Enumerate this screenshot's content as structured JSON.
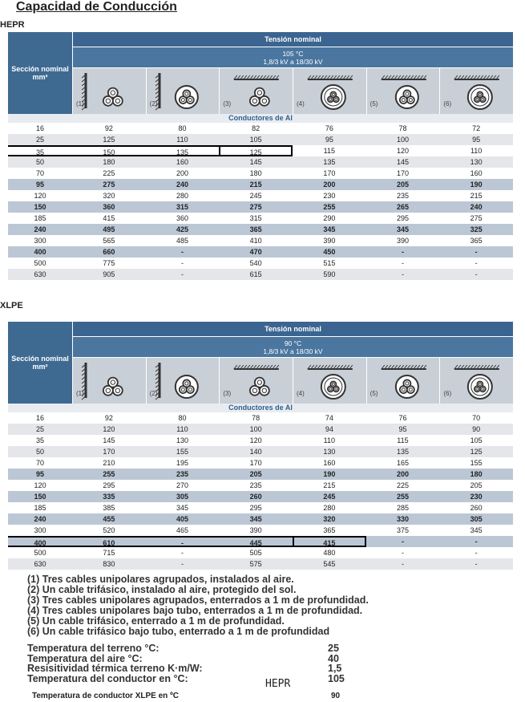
{
  "title": "Capacidad de Conducción",
  "tables": [
    {
      "label": "HEPR",
      "section_header": "Sección nominal",
      "unit": "mm²",
      "voltage_header": "Tensión nominal",
      "temperature": "105 °C",
      "voltage": "1,8/3 kV a 18/30 kV",
      "columns": [
        "(1)",
        "(2)",
        "(3)",
        "(4)",
        "(5)",
        "(6)"
      ],
      "subheader": "Conductores de Al",
      "rows": [
        [
          "16",
          "92",
          "80",
          "82",
          "76",
          "78",
          "72"
        ],
        [
          "25",
          "125",
          "110",
          "105",
          "95",
          "100",
          "95"
        ],
        [
          "35",
          "150",
          "135",
          "125",
          "115",
          "120",
          "110"
        ],
        [
          "50",
          "180",
          "160",
          "145",
          "135",
          "145",
          "130"
        ],
        [
          "70",
          "225",
          "200",
          "180",
          "170",
          "170",
          "160"
        ],
        [
          "95",
          "275",
          "240",
          "215",
          "200",
          "205",
          "190"
        ],
        [
          "120",
          "320",
          "280",
          "245",
          "230",
          "235",
          "215"
        ],
        [
          "150",
          "360",
          "315",
          "275",
          "255",
          "265",
          "240"
        ],
        [
          "185",
          "415",
          "360",
          "315",
          "290",
          "295",
          "275"
        ],
        [
          "240",
          "495",
          "425",
          "365",
          "345",
          "345",
          "325"
        ],
        [
          "300",
          "565",
          "485",
          "410",
          "390",
          "390",
          "365"
        ],
        [
          "400",
          "660",
          "-",
          "470",
          "450",
          "-",
          "-"
        ],
        [
          "500",
          "775",
          "-",
          "540",
          "515",
          "-",
          "-"
        ],
        [
          "630",
          "905",
          "-",
          "615",
          "590",
          "-",
          "-"
        ]
      ]
    },
    {
      "label": "XLPE",
      "section_header": "Sección nominal",
      "unit": "mm²",
      "voltage_header": "Tensión nominal",
      "temperature": "90 °C",
      "voltage": "1,8/3 kV a 18/30 kV",
      "columns": [
        "(1)",
        "(2)",
        "(3)",
        "(4)",
        "(5)",
        "(6)"
      ],
      "subheader": "Conductores de Al",
      "rows": [
        [
          "16",
          "92",
          "80",
          "78",
          "74",
          "76",
          "70"
        ],
        [
          "25",
          "120",
          "110",
          "100",
          "94",
          "95",
          "90"
        ],
        [
          "35",
          "145",
          "130",
          "120",
          "110",
          "115",
          "105"
        ],
        [
          "50",
          "170",
          "155",
          "140",
          "130",
          "135",
          "125"
        ],
        [
          "70",
          "210",
          "195",
          "170",
          "160",
          "165",
          "155"
        ],
        [
          "95",
          "255",
          "235",
          "205",
          "190",
          "200",
          "180"
        ],
        [
          "120",
          "295",
          "270",
          "235",
          "215",
          "225",
          "205"
        ],
        [
          "150",
          "335",
          "305",
          "260",
          "245",
          "255",
          "230"
        ],
        [
          "185",
          "385",
          "345",
          "295",
          "280",
          "285",
          "260"
        ],
        [
          "240",
          "455",
          "405",
          "345",
          "320",
          "330",
          "305"
        ],
        [
          "300",
          "520",
          "465",
          "390",
          "365",
          "375",
          "345"
        ],
        [
          "400",
          "610",
          "-",
          "445",
          "415",
          "-",
          "-"
        ],
        [
          "500",
          "715",
          "-",
          "505",
          "480",
          "-",
          "-"
        ],
        [
          "630",
          "830",
          "-",
          "575",
          "545",
          "-",
          "-"
        ]
      ]
    }
  ],
  "notes": [
    "(1) Tres cables unipolares agrupados, instalados al aire.",
    "(2) Un cable trifásico, instalado al aire, protegido del sol.",
    "(3) Tres cables unipolares agrupados, enterrados a 1 m de profundidad.",
    "(4) Tres cables unipolares bajo tubo, enterrados a 1 m de profundidad.",
    "(5) Un cable trifásico, enterrado a 1 m de profundidad.",
    "(6) Un cable trifásico bajo tubo, enterrado a 1 m de profundidad"
  ],
  "conditions": [
    {
      "label": "Temperatura del terreno °C:",
      "value": "25"
    },
    {
      "label": "Temperatura del aire °C:",
      "value": "40"
    },
    {
      "label": "Resisitividad térmica terreno K·m/W:",
      "value": "1,5"
    },
    {
      "label": "Temperatura del conductor en °C:",
      "value": "105"
    }
  ],
  "handwritten": "HEPR",
  "footer": {
    "label": "Temperatura de conductor XLPE en ºC",
    "value": "90"
  }
}
